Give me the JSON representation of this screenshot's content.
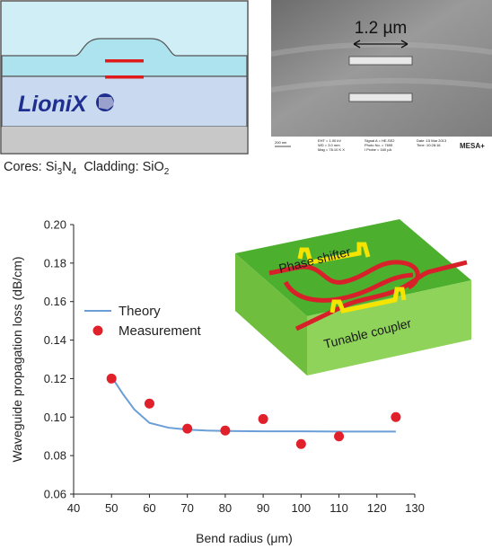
{
  "cross_section": {
    "logo_text": "LioniX",
    "colors": {
      "top_cladding": "#cfeef6",
      "mid_cladding": "#ade3ef",
      "bottom_cladding": "#c9d9ef",
      "substrate": "#c8c8c8",
      "core": "#e01b1b",
      "logo": "#1e2f8f"
    }
  },
  "sem": {
    "scale_label": "1.2 µm",
    "info": {
      "scalebar": "200 nm",
      "col1": [
        "EHT = 1.00 kV",
        "WD = 3.0 mm",
        "Mag = 78.10 K X"
      ],
      "col2": [
        "Signal A = HE-SE2",
        "Photo No. = 7695",
        "I Probe = 160 pA"
      ],
      "col3": [
        "Date :15 Mar 2013",
        "Time :10:28:16"
      ],
      "brand": "MESA+"
    }
  },
  "caption": {
    "cores_label": "Cores: ",
    "cores_main": "Si",
    "cores_sub1": "3",
    "cores_mid": "N",
    "cores_sub2": "4",
    "cladding_label": "Cladding: ",
    "cladding_main": "SiO",
    "cladding_sub": "2"
  },
  "chart_data": {
    "type": "scatter",
    "xlabel": "Bend radius (μm)",
    "ylabel": "Waveguide propagation loss (dB/cm)",
    "xlim": [
      40,
      130
    ],
    "ylim": [
      0.06,
      0.2
    ],
    "xticks": [
      40,
      50,
      60,
      70,
      80,
      90,
      100,
      110,
      120,
      130
    ],
    "yticks": [
      "0.06",
      "0.08",
      "0.10",
      "0.12",
      "0.14",
      "0.16",
      "0.18",
      "0.20"
    ],
    "grid": false,
    "legend_position": "left",
    "series": [
      {
        "name": "Theory",
        "kind": "line",
        "color": "#6a9ed6",
        "x": [
          50,
          53,
          56,
          60,
          65,
          70,
          75,
          80,
          90,
          100,
          110,
          125
        ],
        "y": [
          0.121,
          0.112,
          0.104,
          0.097,
          0.0945,
          0.0935,
          0.093,
          0.0928,
          0.0926,
          0.0926,
          0.0925,
          0.0925
        ]
      },
      {
        "name": "Measurement",
        "kind": "scatter",
        "color": "#e0202a",
        "x": [
          50,
          60,
          70,
          80,
          90,
          100,
          110,
          125
        ],
        "y": [
          0.12,
          0.107,
          0.094,
          0.093,
          0.099,
          0.086,
          0.09,
          0.1
        ]
      }
    ],
    "inset": {
      "labels": [
        "Phase shifter",
        "Tunable coupler"
      ],
      "colors": {
        "chip_top": "#4caf2e",
        "chip_side": "#8fd35a",
        "waveguide": "#d8202a",
        "heater": "#f5e400"
      }
    }
  }
}
